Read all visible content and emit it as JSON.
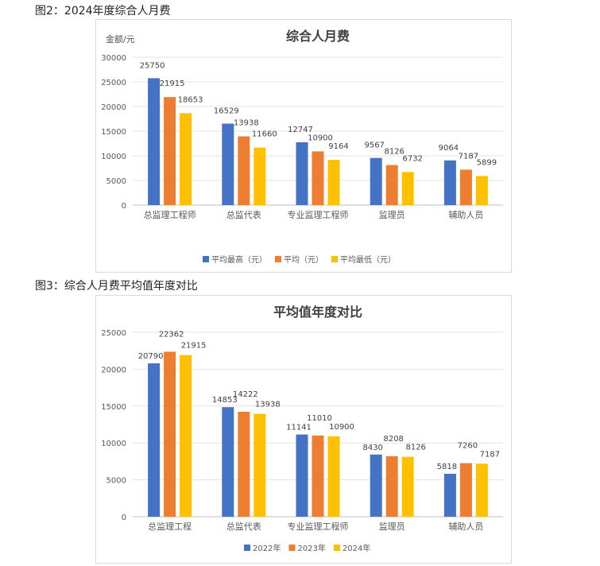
{
  "captions": {
    "fig2": "图2：2024年度综合人月费",
    "fig3": "图3：综合人月费平均值年度对比"
  },
  "chart_data": [
    {
      "type": "bar",
      "title": "综合人月费",
      "ylabel": "金额/元",
      "ylim": [
        0,
        30000
      ],
      "yticks": [
        0,
        5000,
        10000,
        15000,
        20000,
        25000,
        30000
      ],
      "grid": true,
      "legend_position": "bottom",
      "categories": [
        "总监理工程师",
        "总监代表",
        "专业监理工程师",
        "监理员",
        "辅助人员"
      ],
      "series": [
        {
          "name": "平均最高（元）",
          "color": "#4472C4",
          "values": [
            25750,
            16529,
            12747,
            9567,
            9064
          ]
        },
        {
          "name": "平均（元）",
          "color": "#ED7D31",
          "values": [
            21915,
            13938,
            10900,
            8126,
            7187
          ]
        },
        {
          "name": "平均最低（元）",
          "color": "#FFC000",
          "values": [
            18653,
            11660,
            9164,
            6732,
            5899
          ]
        }
      ]
    },
    {
      "type": "bar",
      "title": "平均值年度对比",
      "ylabel": "",
      "ylim": [
        0,
        25000
      ],
      "yticks": [
        0,
        5000,
        10000,
        15000,
        20000,
        25000
      ],
      "grid": true,
      "legend_position": "bottom",
      "categories": [
        "总监理工程",
        "总监代表",
        "专业监理工程师",
        "监理员",
        "辅助人员"
      ],
      "series": [
        {
          "name": "2022年",
          "color": "#4472C4",
          "values": [
            20790,
            14853,
            11141,
            8430,
            5818
          ]
        },
        {
          "name": "2023年",
          "color": "#ED7D31",
          "values": [
            22362,
            14222,
            11010,
            8208,
            7260
          ]
        },
        {
          "name": "2024年",
          "color": "#FFC000",
          "values": [
            21915,
            13938,
            10900,
            8126,
            7187
          ]
        }
      ]
    }
  ]
}
